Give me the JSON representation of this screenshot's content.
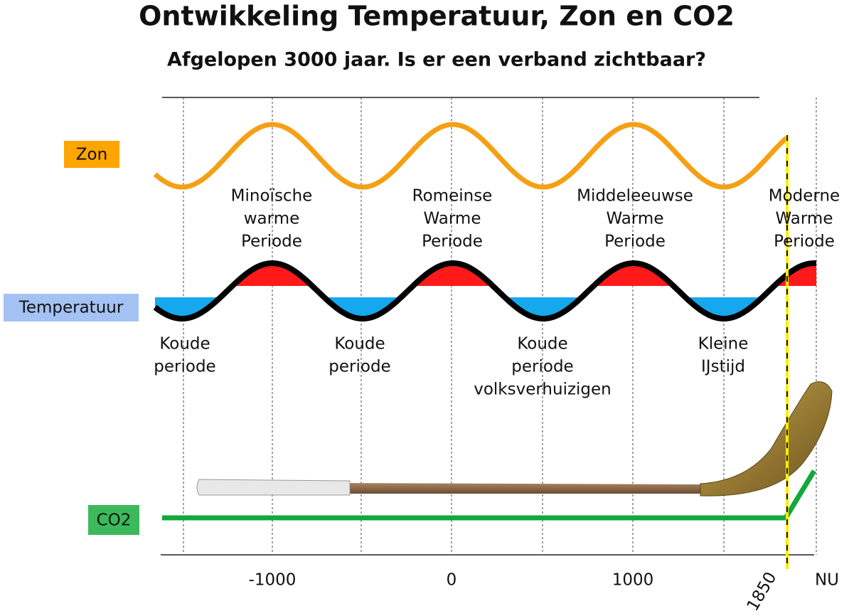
{
  "header": {
    "title": "Ontwikkeling Temperatuur, Zon en CO2",
    "subtitle": "Afgelopen 3000 jaar. Is er een verband zichtbaar?"
  },
  "rows": {
    "sun": "Zon",
    "temperature": "Temperatuur",
    "co2": "CO2"
  },
  "warm_periods": [
    {
      "lines": [
        "Minoïsche",
        "warme",
        "Periode"
      ]
    },
    {
      "lines": [
        "Romeinse",
        "Warme",
        "Periode"
      ]
    },
    {
      "lines": [
        "Middeleeuwse",
        "Warme",
        "Periode"
      ]
    },
    {
      "lines": [
        "Moderne",
        "Warme",
        "Periode"
      ]
    }
  ],
  "cold_periods": [
    {
      "lines": [
        "Koude",
        "periode"
      ]
    },
    {
      "lines": [
        "Koude",
        "periode"
      ]
    },
    {
      "lines": [
        "Koude",
        "periode",
        "volksverhuizigen"
      ]
    },
    {
      "lines": [
        "Kleine",
        "IJstijd"
      ]
    }
  ],
  "axis": {
    "ticks": [
      "-1000",
      "0",
      "1000",
      "1850",
      "NU"
    ]
  }
}
